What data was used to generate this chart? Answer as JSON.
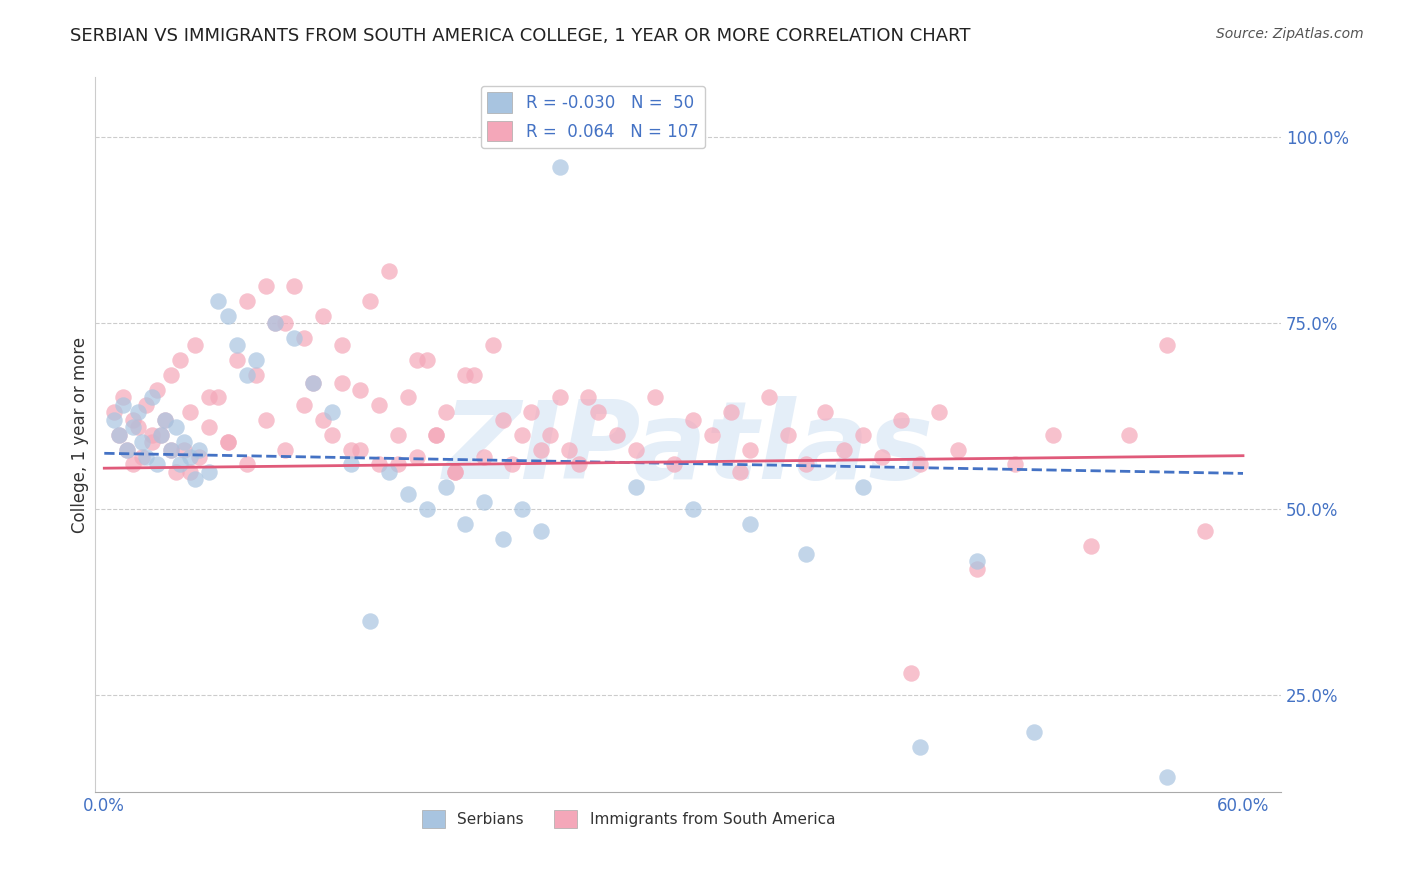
{
  "title": "SERBIAN VS IMMIGRANTS FROM SOUTH AMERICA COLLEGE, 1 YEAR OR MORE CORRELATION CHART",
  "source": "Source: ZipAtlas.com",
  "ylabel": "College, 1 year or more",
  "xlim": [
    -0.005,
    0.62
  ],
  "ylim": [
    0.12,
    1.08
  ],
  "xticks": [
    0.0,
    0.1,
    0.2,
    0.3,
    0.4,
    0.5,
    0.6
  ],
  "xticklabels": [
    "0.0%",
    "",
    "",
    "",
    "",
    "",
    "60.0%"
  ],
  "yticks": [
    0.25,
    0.5,
    0.75,
    1.0
  ],
  "yticklabels": [
    "25.0%",
    "50.0%",
    "75.0%",
    "100.0%"
  ],
  "legend_serbian_R": "-0.030",
  "legend_serbian_N": "50",
  "legend_imm_R": "0.064",
  "legend_imm_N": "107",
  "serbian_color": "#a8c4e0",
  "imm_color": "#f4a7b9",
  "serbian_line_color": "#4472c4",
  "imm_line_color": "#e05a7a",
  "background_color": "#ffffff",
  "watermark": "ZIPatlas",
  "serbian_line_intercept": 0.575,
  "serbian_line_slope": -0.045,
  "imm_line_intercept": 0.555,
  "imm_line_slope": 0.028,
  "serbian_x": [
    0.005,
    0.008,
    0.01,
    0.012,
    0.015,
    0.018,
    0.02,
    0.022,
    0.025,
    0.028,
    0.03,
    0.032,
    0.035,
    0.038,
    0.04,
    0.042,
    0.045,
    0.048,
    0.05,
    0.055,
    0.06,
    0.065,
    0.07,
    0.075,
    0.08,
    0.09,
    0.1,
    0.11,
    0.12,
    0.13,
    0.14,
    0.15,
    0.16,
    0.17,
    0.18,
    0.19,
    0.2,
    0.21,
    0.22,
    0.23,
    0.24,
    0.28,
    0.31,
    0.34,
    0.37,
    0.4,
    0.43,
    0.46,
    0.49,
    0.56
  ],
  "serbian_y": [
    0.62,
    0.6,
    0.64,
    0.58,
    0.61,
    0.63,
    0.59,
    0.57,
    0.65,
    0.56,
    0.6,
    0.62,
    0.58,
    0.61,
    0.56,
    0.59,
    0.57,
    0.54,
    0.58,
    0.55,
    0.78,
    0.76,
    0.72,
    0.68,
    0.7,
    0.75,
    0.73,
    0.67,
    0.63,
    0.56,
    0.35,
    0.55,
    0.52,
    0.5,
    0.53,
    0.48,
    0.51,
    0.46,
    0.5,
    0.47,
    0.96,
    0.53,
    0.5,
    0.48,
    0.44,
    0.53,
    0.18,
    0.43,
    0.2,
    0.14
  ],
  "imm_x": [
    0.005,
    0.008,
    0.01,
    0.012,
    0.015,
    0.018,
    0.02,
    0.022,
    0.025,
    0.028,
    0.03,
    0.032,
    0.035,
    0.038,
    0.04,
    0.042,
    0.045,
    0.048,
    0.05,
    0.055,
    0.06,
    0.065,
    0.07,
    0.075,
    0.08,
    0.085,
    0.09,
    0.095,
    0.1,
    0.105,
    0.11,
    0.115,
    0.12,
    0.125,
    0.13,
    0.135,
    0.14,
    0.145,
    0.15,
    0.155,
    0.16,
    0.165,
    0.17,
    0.175,
    0.18,
    0.185,
    0.19,
    0.2,
    0.21,
    0.22,
    0.23,
    0.24,
    0.25,
    0.26,
    0.27,
    0.28,
    0.29,
    0.3,
    0.31,
    0.32,
    0.33,
    0.34,
    0.35,
    0.36,
    0.37,
    0.38,
    0.39,
    0.4,
    0.41,
    0.42,
    0.43,
    0.44,
    0.45,
    0.46,
    0.48,
    0.5,
    0.52,
    0.54,
    0.56,
    0.58,
    0.015,
    0.025,
    0.035,
    0.045,
    0.055,
    0.065,
    0.075,
    0.085,
    0.095,
    0.105,
    0.115,
    0.125,
    0.135,
    0.145,
    0.155,
    0.165,
    0.175,
    0.185,
    0.195,
    0.205,
    0.215,
    0.225,
    0.235,
    0.245,
    0.255,
    0.335,
    0.425
  ],
  "imm_y": [
    0.63,
    0.6,
    0.65,
    0.58,
    0.62,
    0.61,
    0.57,
    0.64,
    0.59,
    0.66,
    0.6,
    0.62,
    0.68,
    0.55,
    0.7,
    0.58,
    0.63,
    0.72,
    0.57,
    0.61,
    0.65,
    0.59,
    0.7,
    0.56,
    0.68,
    0.62,
    0.75,
    0.58,
    0.8,
    0.64,
    0.67,
    0.76,
    0.6,
    0.72,
    0.58,
    0.66,
    0.78,
    0.56,
    0.82,
    0.6,
    0.65,
    0.57,
    0.7,
    0.6,
    0.63,
    0.55,
    0.68,
    0.57,
    0.62,
    0.6,
    0.58,
    0.65,
    0.56,
    0.63,
    0.6,
    0.58,
    0.65,
    0.56,
    0.62,
    0.6,
    0.63,
    0.58,
    0.65,
    0.6,
    0.56,
    0.63,
    0.58,
    0.6,
    0.57,
    0.62,
    0.56,
    0.63,
    0.58,
    0.42,
    0.56,
    0.6,
    0.45,
    0.6,
    0.72,
    0.47,
    0.56,
    0.6,
    0.58,
    0.55,
    0.65,
    0.59,
    0.78,
    0.8,
    0.75,
    0.73,
    0.62,
    0.67,
    0.58,
    0.64,
    0.56,
    0.7,
    0.6,
    0.55,
    0.68,
    0.72,
    0.56,
    0.63,
    0.6,
    0.58,
    0.65,
    0.55,
    0.28
  ]
}
